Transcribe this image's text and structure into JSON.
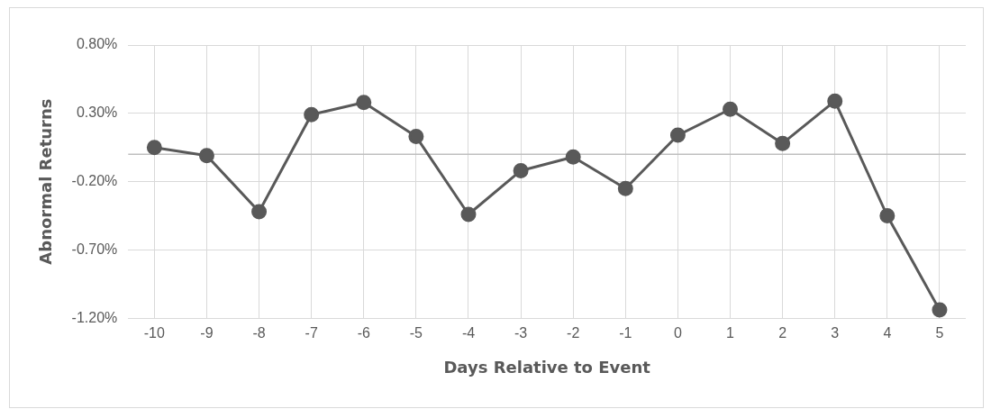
{
  "chart_data": {
    "type": "line",
    "xlabel": "Days Relative to Event",
    "ylabel": "Abnormal Returns",
    "categories": [
      "-10",
      "-9",
      "-8",
      "-7",
      "-6",
      "-5",
      "-4",
      "-3",
      "-2",
      "-1",
      "0",
      "1",
      "2",
      "3",
      "4",
      "5"
    ],
    "series": [
      {
        "color": "#595959",
        "values": [
          0.05,
          -0.01,
          -0.42,
          0.29,
          0.38,
          0.13,
          -0.44,
          -0.12,
          -0.02,
          -0.25,
          0.14,
          0.33,
          0.08,
          0.39,
          -0.45,
          -1.14
        ]
      }
    ],
    "ylim": [
      -1.2,
      0.8
    ],
    "yticks": [
      {
        "value": -1.2,
        "label": "-1.20%"
      },
      {
        "value": -0.7,
        "label": "-0.70%"
      },
      {
        "value": -0.2,
        "label": "-0.20%"
      },
      {
        "value": 0.3,
        "label": "0.30%"
      },
      {
        "value": 0.8,
        "label": "0.80%"
      }
    ],
    "grid": true,
    "legend": false,
    "marker": "circle",
    "line_style": "solid"
  }
}
